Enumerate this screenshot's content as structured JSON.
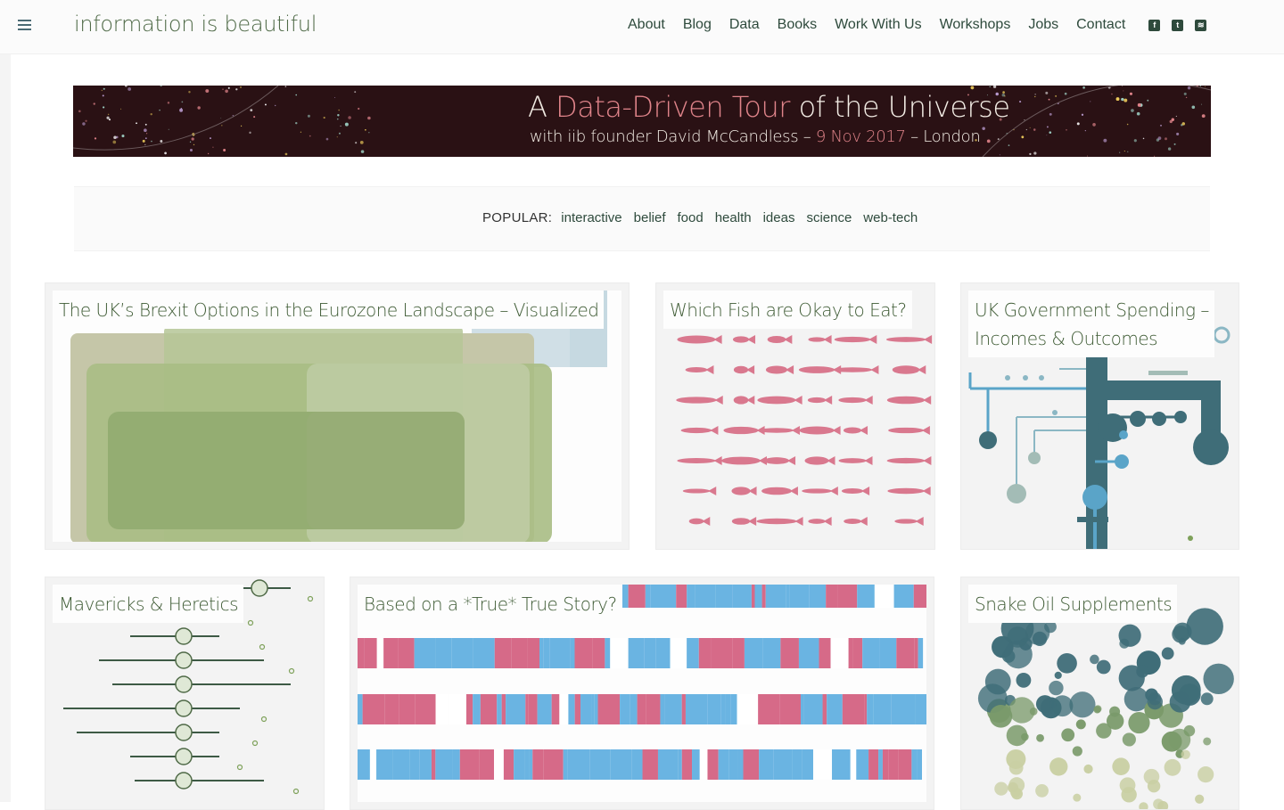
{
  "header": {
    "logo": "information is beautiful",
    "nav": [
      "About",
      "Blog",
      "Data",
      "Books",
      "Work With Us",
      "Workshops",
      "Jobs",
      "Contact"
    ],
    "social_icons": [
      "facebook-icon",
      "twitter-icon",
      "rss-icon"
    ]
  },
  "banner": {
    "line1_a": "A ",
    "line1_highlight": "Data-Driven Tour",
    "line1_b": " of the Universe",
    "line2_a": "with iib founder David McCandless – ",
    "line2_highlight": "9 Nov 2017",
    "line2_b": " – London"
  },
  "popular": {
    "label": "POPULAR:",
    "tags": [
      "interactive",
      "belief",
      "food",
      "health",
      "ideas",
      "science",
      "web-tech"
    ]
  },
  "cards": [
    {
      "title": "The UK’s Brexit Options in the Eurozone Landscape – Visualized"
    },
    {
      "title": "Which Fish are Okay to Eat?"
    },
    {
      "title_line1": "UK Government Spending –",
      "title_line2": "Incomes & Outcomes"
    },
    {
      "title": "Mavericks & Heretics"
    },
    {
      "title": "Based on a *True* True Story?"
    },
    {
      "title": "Snake Oil Supplements"
    }
  ],
  "colors": {
    "accent_green": "#4f6a47",
    "nav_text": "#2e4a3c",
    "banner_bg": "#2a1114",
    "banner_highlight": "#e0848a",
    "fish_pink": "#d9788e",
    "spending_teal": "#3f6d78",
    "spending_blue": "#5aa4c8",
    "story_blue": "#6ab4e2",
    "story_pink": "#d66a88"
  }
}
